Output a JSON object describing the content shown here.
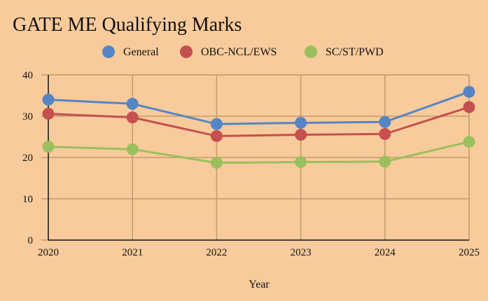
{
  "chart_data": {
    "type": "line",
    "title": "GATE ME Qualifying Marks",
    "xlabel": "Year",
    "ylabel": "",
    "categories": [
      "2020",
      "2021",
      "2022",
      "2023",
      "2024",
      "2025"
    ],
    "ylim": [
      0,
      40
    ],
    "yticks": [
      0,
      10,
      20,
      30,
      40
    ],
    "grid": true,
    "legend_position": "top",
    "series": [
      {
        "name": "General",
        "color": "#5585C5",
        "values": [
          34.0,
          33.0,
          28.1,
          28.4,
          28.6,
          35.9
        ]
      },
      {
        "name": "OBC-NCL/EWS",
        "color": "#C5504D",
        "values": [
          30.6,
          29.7,
          25.2,
          25.5,
          25.7,
          32.2
        ]
      },
      {
        "name": "SC/ST/PWD",
        "color": "#9BBF5C",
        "values": [
          22.6,
          22.0,
          18.7,
          18.9,
          19.0,
          23.8
        ]
      }
    ]
  }
}
